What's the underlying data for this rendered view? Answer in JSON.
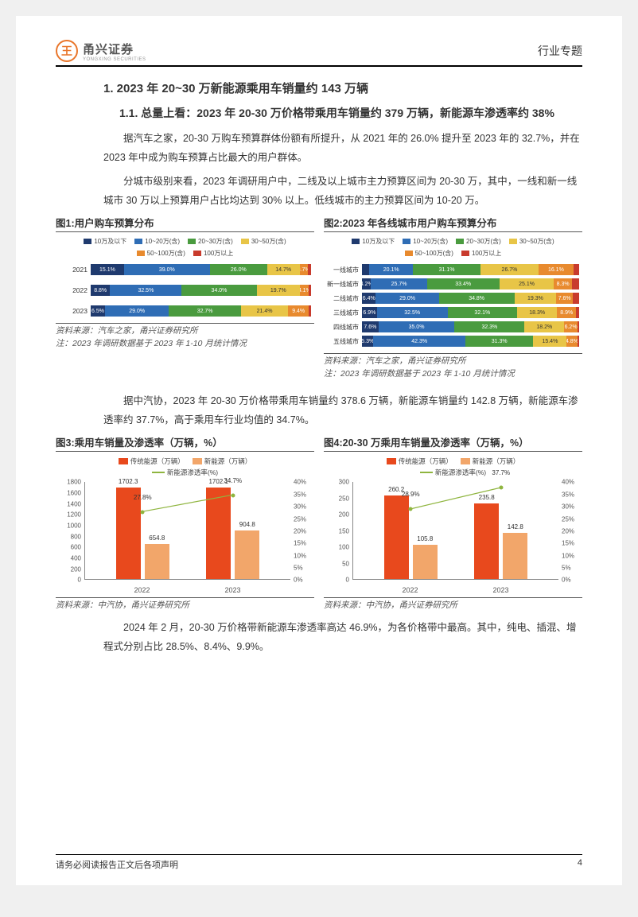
{
  "header": {
    "logo_glyph": "王",
    "logo_cn": "甬兴证券",
    "logo_en": "YONGXING SECURITIES",
    "doc_type": "行业专题"
  },
  "h1": "1. 2023 年 20~30 万新能源乘用车销量约 143 万辆",
  "h2": "1.1. 总量上看：2023 年 20-30 万价格带乘用车销量约 379 万辆，新能源车渗透率约 38%",
  "p1": "据汽车之家，20-30 万购车预算群体份额有所提升，从 2021 年的 26.0% 提升至 2023 年的 32.7%，并在 2023 年中成为购车预算占比最大的用户群体。",
  "p2": "分城市级别来看，2023 年调研用户中，二线及以上城市主力预算区间为 20-30 万，其中，一线和新一线城市 30 万以上预算用户占比均达到 30% 以上。低线城市的主力预算区间为 10-20 万。",
  "p3": "据中汽协，2023 年 20-30 万价格带乘用车销量约 378.6 万辆，新能源车销量约 142.8 万辆，新能源车渗透率约 37.7%，高于乘用车行业均值的 34.7%。",
  "p4": "2024 年 2 月，20-30 万价格带新能源车渗透率高达 46.9%，为各价格带中最高。其中，纯电、插混、增程式分别占比 28.5%、8.4%、9.9%。",
  "colors": {
    "navy": "#1f3a6e",
    "blue": "#2f6db5",
    "green": "#4a9b3f",
    "yellow": "#e8c547",
    "orange": "#e88a2e",
    "red": "#c83b2d",
    "bar_orange": "#e8491d",
    "bar_light": "#f2a66a",
    "line_green": "#8fb53f"
  },
  "fig1": {
    "title": "图1:用户购车预算分布",
    "legend": [
      "10万及以下",
      "10~20万(含)",
      "20~30万(含)",
      "30~50万(含)",
      "50~100万(含)",
      "100万以上"
    ],
    "rows": [
      {
        "label": "2021",
        "segs": [
          15.1,
          39.0,
          26.0,
          14.7,
          3.7,
          1.5
        ]
      },
      {
        "label": "2022",
        "segs": [
          8.8,
          32.5,
          34.0,
          19.7,
          4.1,
          0.9
        ]
      },
      {
        "label": "2023",
        "segs": [
          6.5,
          29.0,
          32.7,
          21.4,
          9.4,
          1.0
        ]
      }
    ],
    "hide_last_label": true,
    "source": "资料来源：汽车之家，甬兴证券研究所",
    "note": "注：2023 年调研数据基于 2023 年 1-10 月统计情况"
  },
  "fig2": {
    "title": "图2:2023 年各线城市用户购车预算分布",
    "legend": [
      "10万及以下",
      "10~20万(含)",
      "20~30万(含)",
      "30~50万(含)",
      "50~100万(含)",
      "100万以上"
    ],
    "rows": [
      {
        "label": "一线城市",
        "segs": [
          3.4,
          20.1,
          31.1,
          26.7,
          16.1,
          2.6
        ]
      },
      {
        "label": "新一线城市",
        "segs": [
          4.2,
          25.7,
          33.4,
          25.1,
          8.3,
          3.3
        ]
      },
      {
        "label": "二线城市",
        "segs": [
          6.4,
          29.0,
          34.8,
          19.3,
          7.6,
          2.9
        ]
      },
      {
        "label": "三线城市",
        "segs": [
          6.9,
          32.5,
          32.1,
          18.3,
          8.9,
          1.3
        ]
      },
      {
        "label": "四线城市",
        "segs": [
          7.6,
          35.0,
          32.3,
          18.2,
          6.2,
          0.7
        ]
      },
      {
        "label": "五线城市",
        "segs": [
          5.3,
          42.3,
          31.3,
          15.4,
          4.8,
          0.9
        ]
      }
    ],
    "source": "资料来源：汽车之家，甬兴证券研究所",
    "note": "注：2023 年调研数据基于 2023 年 1-10 月统计情况"
  },
  "fig3": {
    "title": "图3:乘用车销量及渗透率（万辆，%）",
    "legend_bar1": "传统能源（万辆）",
    "legend_bar2": "新能源（万辆）",
    "legend_line": "新能源渗透率(%)",
    "categories": [
      "2022",
      "2023"
    ],
    "bar1": [
      1702.3,
      1702.1
    ],
    "bar2": [
      654.8,
      904.8
    ],
    "line": [
      27.8,
      34.7
    ],
    "y1_max": 1800,
    "y1_step": 200,
    "y2_max": 40,
    "y2_step": 5,
    "source": "资料来源：中汽协，甬兴证券研究所"
  },
  "fig4": {
    "title": "图4:20-30 万乘用车销量及渗透率（万辆，%）",
    "legend_bar1": "传统能源（万辆）",
    "legend_bar2": "新能源（万辆）",
    "legend_line": "新能源渗透率(%)",
    "categories": [
      "2022",
      "2023"
    ],
    "bar1": [
      260.2,
      235.8
    ],
    "bar2": [
      105.8,
      142.8
    ],
    "line": [
      28.9,
      37.7
    ],
    "y1_max": 300,
    "y1_step": 50,
    "y2_max": 40,
    "y2_step": 5,
    "source": "资料来源：中汽协，甬兴证券研究所"
  },
  "footer": {
    "disclaimer": "请务必阅读报告正文后各项声明",
    "page": "4"
  }
}
